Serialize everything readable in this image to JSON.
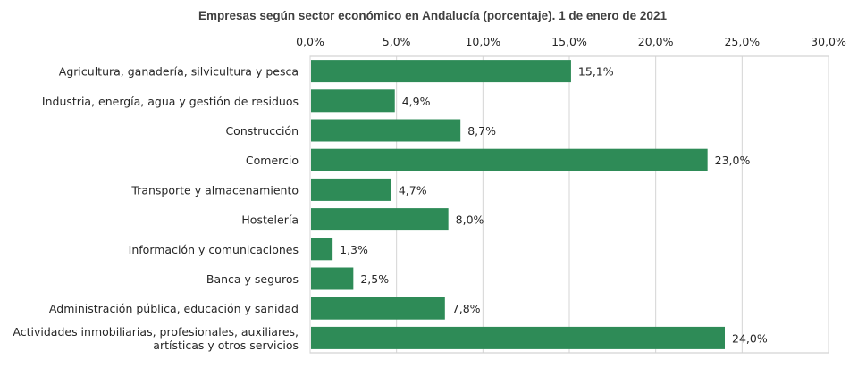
{
  "chart_data": {
    "type": "bar",
    "orientation": "horizontal",
    "title": "Empresas según sector económico en Andalucía (porcentaje). 1 de enero de 2021",
    "xlabel": "",
    "ylabel": "",
    "xlim": [
      0,
      30
    ],
    "x_ticks": [
      0,
      5,
      10,
      15,
      20,
      25,
      30
    ],
    "x_tick_labels": [
      "0,0%",
      "5,0%",
      "10,0%",
      "15,0%",
      "20,0%",
      "25,0%",
      "30,0%"
    ],
    "axis_position": "top",
    "grid": true,
    "bar_color": "#2e8b57",
    "categories": [
      [
        "Agricultura, ganadería, silvicultura y pesca"
      ],
      [
        "Industria, energía, agua y gestión de residuos"
      ],
      [
        "Construcción"
      ],
      [
        "Comercio"
      ],
      [
        "Transporte y almacenamiento"
      ],
      [
        "Hostelería"
      ],
      [
        "Información y comunicaciones"
      ],
      [
        "Banca y seguros"
      ],
      [
        "Administración pública, educación y sanidad"
      ],
      [
        "Actividades inmobiliarias, profesionales, auxiliares,",
        "artísticas y otros servicios"
      ]
    ],
    "values": [
      15.1,
      4.9,
      8.7,
      23.0,
      4.7,
      8.0,
      1.3,
      2.5,
      7.8,
      24.0
    ],
    "data_labels": [
      "15,1%",
      "4,9%",
      "8,7%",
      "23,0%",
      "4,7%",
      "8,0%",
      "1,3%",
      "2,5%",
      "7,8%",
      "24,0%"
    ]
  }
}
